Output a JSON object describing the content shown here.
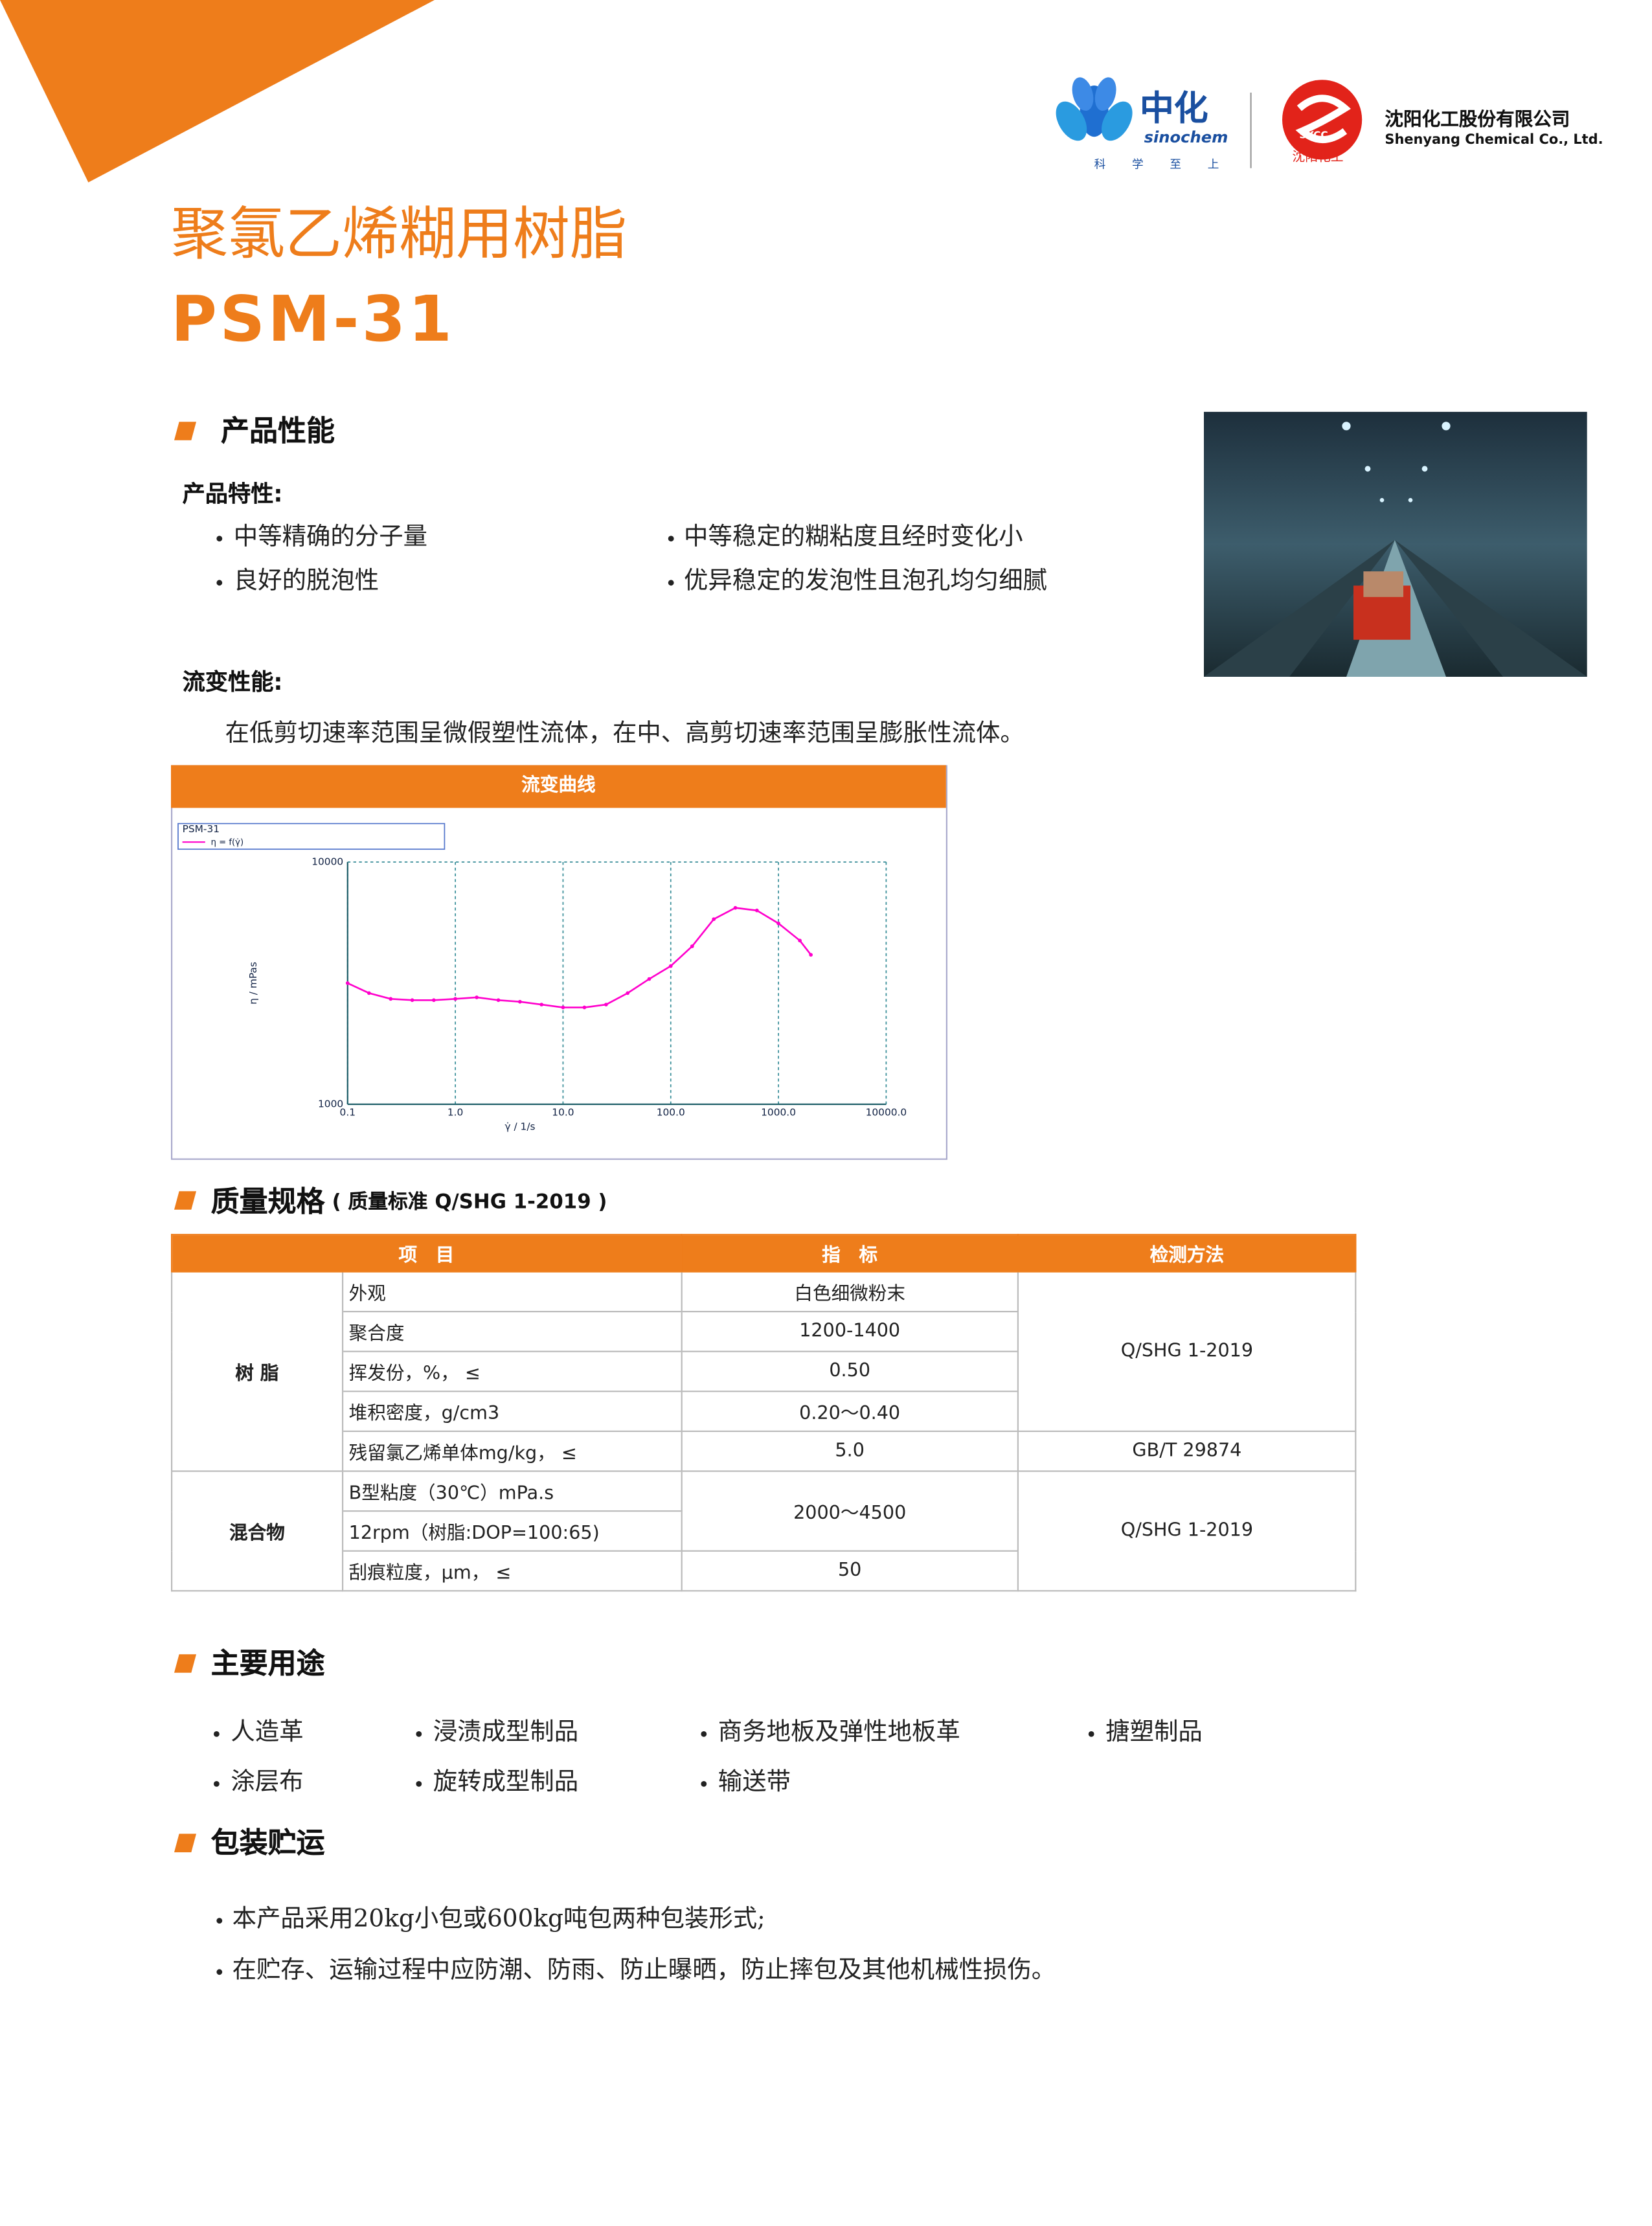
{
  "header": {
    "logo1_name": "中化",
    "logo1_en": "sinochem",
    "logo1_motto": "科 学 至 上",
    "logo2_mark": "SYCC",
    "logo2_cn_small": "沈阳化工",
    "company_cn": "沈阳化工股份有限公司",
    "company_en": "Shenyang Chemical Co., Ltd."
  },
  "title": "聚氯乙烯糊用树脂",
  "model": "PSM-31",
  "performance": {
    "heading": "产品性能",
    "features_heading": "产品特性:",
    "features": [
      "中等精确的分子量",
      "良好的脱泡性",
      "中等稳定的糊粘度且经时变化小",
      "优异稳定的发泡性且泡孔均匀细腻"
    ],
    "rheology_heading": "流变性能:",
    "rheology_text": "在低剪切速率范围呈微假塑性流体，在中、高剪切速率范围呈膨胀性流体。"
  },
  "chart_data": {
    "type": "line",
    "title": "流变曲线",
    "legend_title": "PSM-31",
    "xlabel": "γ̇ / 1/s",
    "ylabel": "η / mPas",
    "x": [
      0.1,
      0.158,
      0.251,
      0.398,
      0.631,
      1,
      1.58,
      2.51,
      3.98,
      6.31,
      10,
      15.8,
      25.1,
      39.8,
      63.1,
      100,
      158,
      251,
      398,
      631,
      1000,
      1580,
      2000
    ],
    "series": [
      {
        "name": "η = f(γ̇)",
        "color": "#ff00cc",
        "values": [
          3162,
          2877,
          2723,
          2690,
          2690,
          2723,
          2762,
          2690,
          2650,
          2580,
          2510,
          2510,
          2580,
          2877,
          3290,
          3720,
          4490,
          5810,
          6470,
          6310,
          5580,
          4740,
          4140
        ]
      }
    ],
    "xlim": [
      0.1,
      10000
    ],
    "ylim": [
      1000,
      10000
    ],
    "xscale": "log",
    "yscale": "log",
    "xticks": [
      0.1,
      {
        "value": 1,
        "label": "1.0"
      },
      {
        "value": 10,
        "label": "10.0"
      },
      {
        "value": 100,
        "label": "100.0"
      },
      {
        "value": 1000,
        "label": "1000.0"
      },
      {
        "value": 10000,
        "label": "10000.0"
      }
    ],
    "yticks": [
      1000,
      10000
    ],
    "grid": true
  },
  "quality": {
    "heading": "质量规格",
    "standard": "( 质量标准 Q/SHG 1-2019 )",
    "table": {
      "header": [
        "项　目",
        "指　标",
        "检测方法"
      ],
      "groups": [
        "树 脂",
        "混合物"
      ],
      "rows": [
        [
          "外观",
          "白色细微粉末",
          "Q/SHG 1-2019"
        ],
        [
          "聚合度",
          "1200-1400"
        ],
        [
          "挥发份，%， ≤",
          "0.50"
        ],
        [
          "堆积密度，g/cm3",
          "0.20～0.40"
        ],
        [
          "残留氯乙烯单体mg/kg， ≤",
          "5.0",
          "GB/T 29874"
        ],
        [
          "B型粘度（30℃）mPa.s",
          "2000～4500",
          "Q/SHG 1-2019"
        ],
        [
          "12rpm（树脂:DOP=100:65)"
        ],
        [
          "刮痕粒度，μm， ≤",
          "50"
        ]
      ]
    }
  },
  "uses": {
    "heading": "主要用途",
    "items": [
      "人造革",
      "浸渍成型制品",
      "商务地板及弹性地板革",
      "搪塑制品",
      "涂层布",
      "旋转成型制品",
      "输送带"
    ]
  },
  "packaging": {
    "heading": "包装贮运",
    "items": [
      "本产品采用20kg小包或600kg吨包两种包装形式;",
      "在贮存、运输过程中应防潮、防雨、防止曝晒，防止摔包及其他机械性损伤。"
    ]
  }
}
